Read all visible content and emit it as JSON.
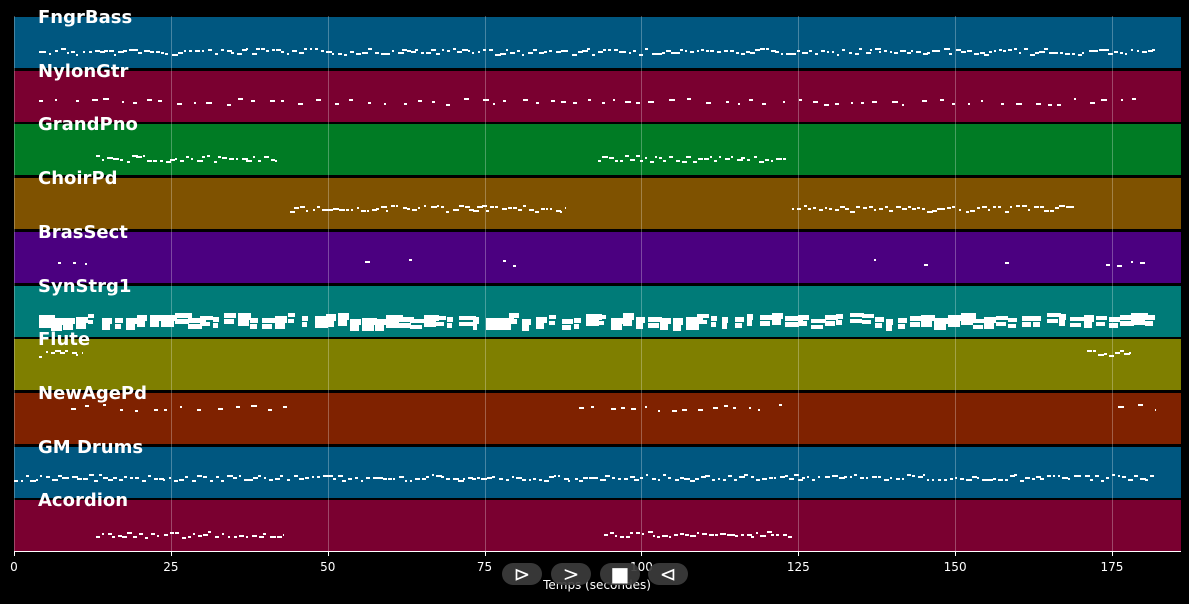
{
  "axis": {
    "xlabel": "Temps (secondes)",
    "ticks": [
      "0",
      "25",
      "50",
      "75",
      "100",
      "125",
      "150",
      "175"
    ],
    "tick_values": [
      0,
      25,
      50,
      75,
      100,
      125,
      150,
      175
    ],
    "xlim": [
      0,
      186
    ]
  },
  "controls": {
    "play_label": "⊳",
    "fast_label": ">",
    "stop_label": "■",
    "back_label": "⊲"
  },
  "tracks": [
    {
      "name": "FngrBass",
      "color": "#005780",
      "segments": [
        [
          4,
          182
        ]
      ],
      "pitch": "mid-low",
      "density": "dense"
    },
    {
      "name": "NylonGtr",
      "color": "#7a0030",
      "segments": [
        [
          4,
          180
        ]
      ],
      "pitch": "mid",
      "density": "sparse"
    },
    {
      "name": "GrandPno",
      "color": "#007b24",
      "segments": [
        [
          13,
          42
        ],
        [
          93,
          123
        ]
      ],
      "pitch": "mid-low",
      "density": "dense"
    },
    {
      "name": "ChoirPd",
      "color": "#7f5200",
      "segments": [
        [
          44,
          88
        ],
        [
          124,
          169
        ]
      ],
      "pitch": "mid",
      "density": "dense"
    },
    {
      "name": "BrasSect",
      "color": "#4b0080",
      "segments": [
        [
          7,
          12
        ],
        [
          56,
          58
        ],
        [
          63,
          65
        ],
        [
          78,
          80
        ],
        [
          137,
          139
        ],
        [
          145,
          147
        ],
        [
          158,
          160
        ],
        [
          174,
          181
        ]
      ],
      "pitch": "mid",
      "density": "sparse"
    },
    {
      "name": "SynStrg1",
      "color": "#007b78",
      "segments": [
        [
          4,
          182
        ]
      ],
      "pitch": "mid",
      "density": "thick"
    },
    {
      "name": "Flute",
      "color": "#7f7f00",
      "segments": [
        [
          4,
          11
        ],
        [
          171,
          178
        ]
      ],
      "pitch": "high",
      "density": "dense"
    },
    {
      "name": "NewAgePd",
      "color": "#7f2200",
      "segments": [
        [
          9,
          44
        ],
        [
          90,
          124
        ],
        [
          176,
          182
        ]
      ],
      "pitch": "high",
      "density": "sparse"
    },
    {
      "name": "GM Drums",
      "color": "#005780",
      "segments": [
        [
          0,
          182
        ]
      ],
      "pitch": "mid",
      "density": "dense"
    },
    {
      "name": "Acordion",
      "color": "#7a0030",
      "segments": [
        [
          13,
          43
        ],
        [
          94,
          124
        ]
      ],
      "pitch": "mid-low",
      "density": "dense"
    }
  ]
}
